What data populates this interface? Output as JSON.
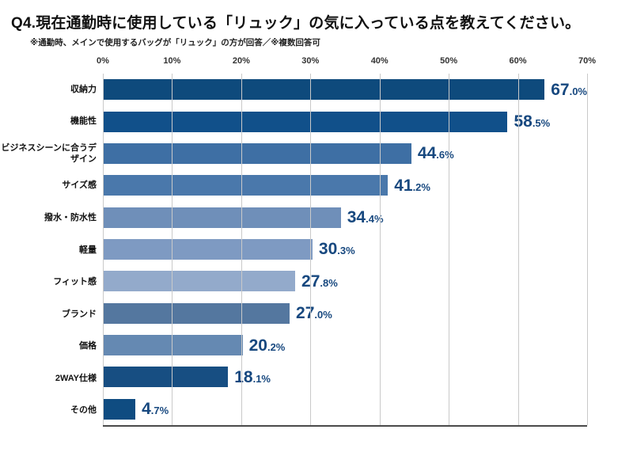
{
  "title": "Q4.現在通勤時に使用している「リュック」の気に入っている点を教えてください。",
  "subtitle": "※通勤時、メインで使用するバッグが「リュック」の方が回答／※複数回答可",
  "chart_data": {
    "type": "bar",
    "orientation": "horizontal",
    "title": "Q4.現在通勤時に使用している「リュック」の気に入っている点を教えてください。",
    "subtitle": "※通勤時、メインで使用するバッグが「リュック」の方が回答／※複数回答可",
    "categories": [
      "収納力",
      "機能性",
      "ビジネスシーンに合うデザイン",
      "サイズ感",
      "撥水・防水性",
      "軽量",
      "フィット感",
      "ブランド",
      "価格",
      "2WAY仕様",
      "その他"
    ],
    "values": [
      67.0,
      58.5,
      44.6,
      41.2,
      34.4,
      30.3,
      27.8,
      27.0,
      20.2,
      18.1,
      4.7
    ],
    "value_labels": [
      "67.0%",
      "58.5%",
      "44.6%",
      "41.2%",
      "34.4%",
      "30.3%",
      "27.8%",
      "27.0%",
      "20.2%",
      "18.1%",
      "4.7%"
    ],
    "bar_colors": [
      "#0e4a7c",
      "#11508a",
      "#3e6fa4",
      "#4a78ab",
      "#6f8fb9",
      "#7e9ac2",
      "#93aacb",
      "#54779f",
      "#6589b2",
      "#174e82",
      "#0f4c81"
    ],
    "value_label_color": "#17487f",
    "xlim": [
      0,
      70
    ],
    "x_ticks": [
      "0%",
      "10%",
      "20%",
      "30%",
      "40%",
      "50%",
      "60%",
      "70%"
    ],
    "grid": true,
    "gridline_color": "#c9c9c9",
    "axis_line_color": "#4a4a4a",
    "legend": "none"
  }
}
